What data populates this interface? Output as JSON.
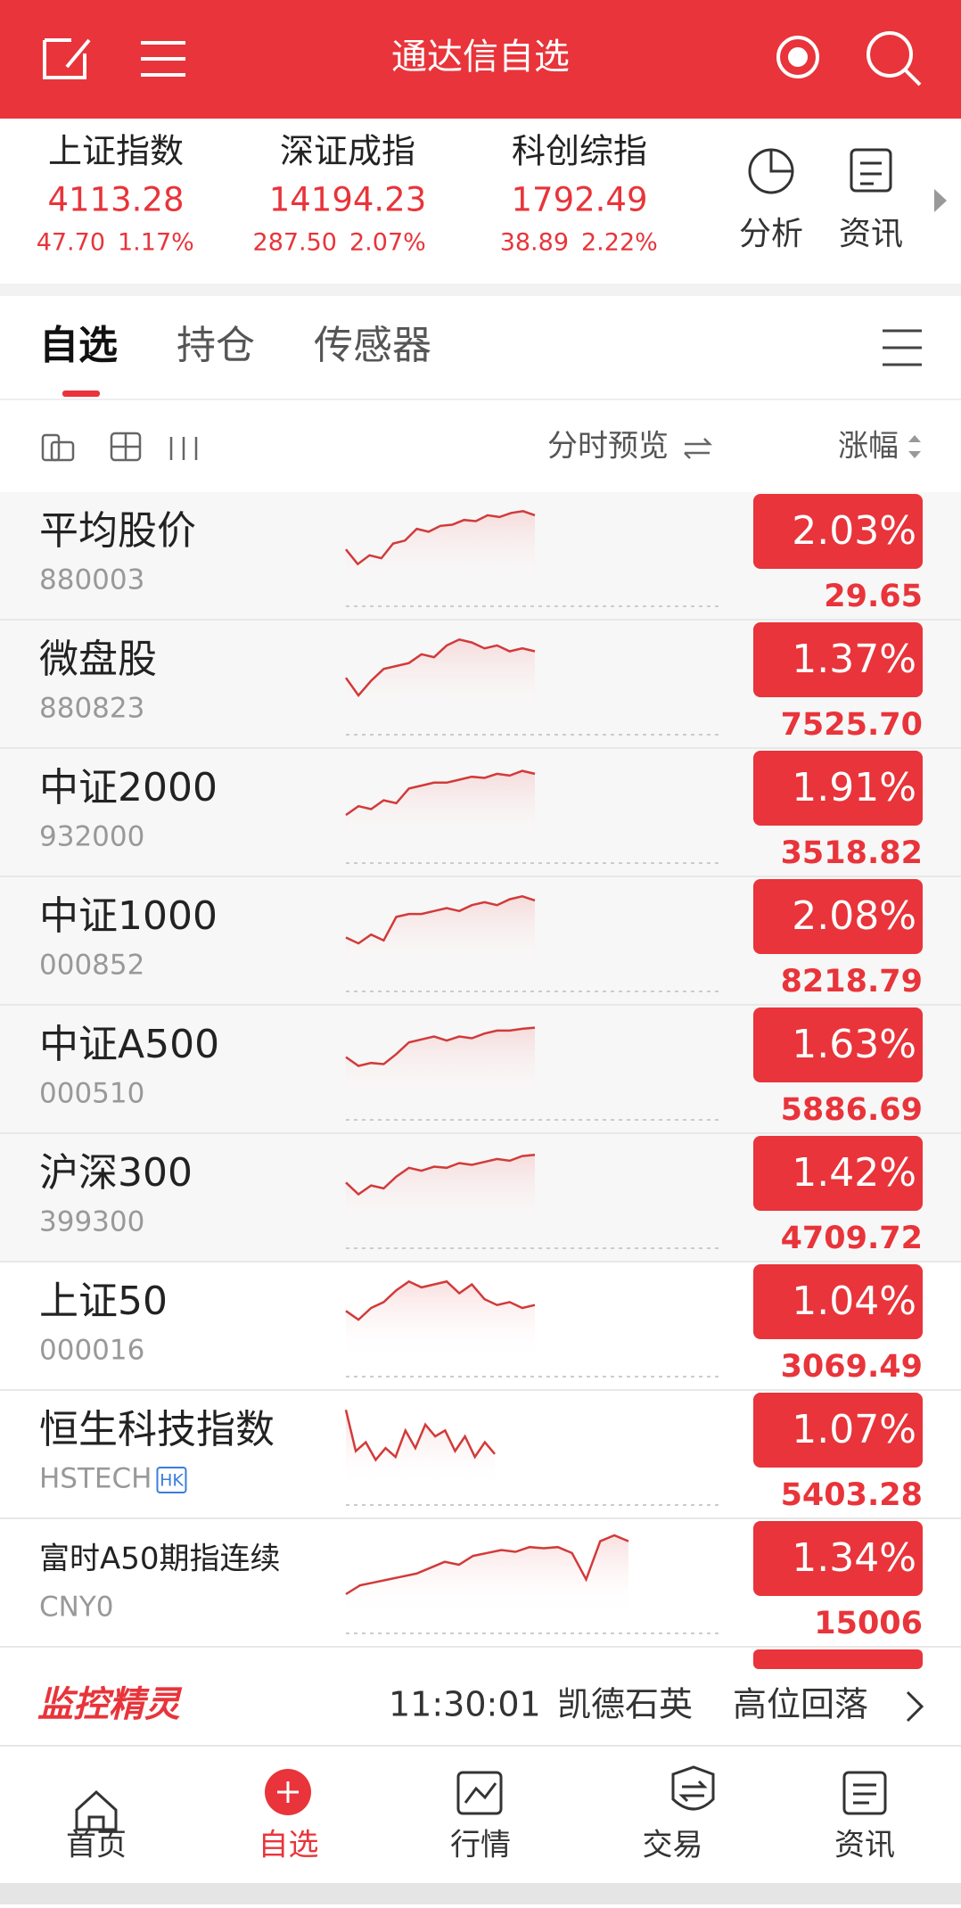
{
  "header": {
    "title": "通达信自选"
  },
  "indices": [
    {
      "name": "上证指数",
      "value": "4113.28",
      "change": "47.70",
      "percent": "1.17%"
    },
    {
      "name": "深证成指",
      "value": "14194.23",
      "change": "287.50",
      "percent": "2.07%"
    },
    {
      "name": "科创综指",
      "value": "1792.49",
      "change": "38.89",
      "percent": "2.22%"
    }
  ],
  "tools": [
    "分析",
    "资讯"
  ],
  "tabs": [
    "自选",
    "持仓",
    "传感器"
  ],
  "toolbar": {
    "preview": "分时预览",
    "sort": "涨幅"
  },
  "rows": [
    {
      "name": "平均股价",
      "code": "880003",
      "percent": "2.03%",
      "price": "29.65"
    },
    {
      "name": "微盘股",
      "code": "880823",
      "percent": "1.37%",
      "price": "7525.70"
    },
    {
      "name": "中证2000",
      "code": "932000",
      "percent": "1.91%",
      "price": "3518.82"
    },
    {
      "name": "中证1000",
      "code": "000852",
      "percent": "2.08%",
      "price": "8218.79"
    },
    {
      "name": "中证A500",
      "code": "000510",
      "percent": "1.63%",
      "price": "5886.69"
    },
    {
      "name": "沪深300",
      "code": "399300",
      "percent": "1.42%",
      "price": "4709.72"
    },
    {
      "name": "上证50",
      "code": "000016",
      "percent": "1.04%",
      "price": "3069.49"
    },
    {
      "name": "恒生科技指数",
      "code": "HSTECH",
      "badge": "HK",
      "percent": "1.07%",
      "price": "5403.28"
    },
    {
      "name": "富时A50期指连续",
      "code": "CNY0",
      "percent": "1.34%",
      "price": "15006"
    }
  ],
  "ticker": {
    "brand": "监控精灵",
    "time": "11:30:01",
    "stock": "凯德石英",
    "event": "高位回落"
  },
  "nav": [
    "首页",
    "自选",
    "行情",
    "交易",
    "资讯"
  ]
}
